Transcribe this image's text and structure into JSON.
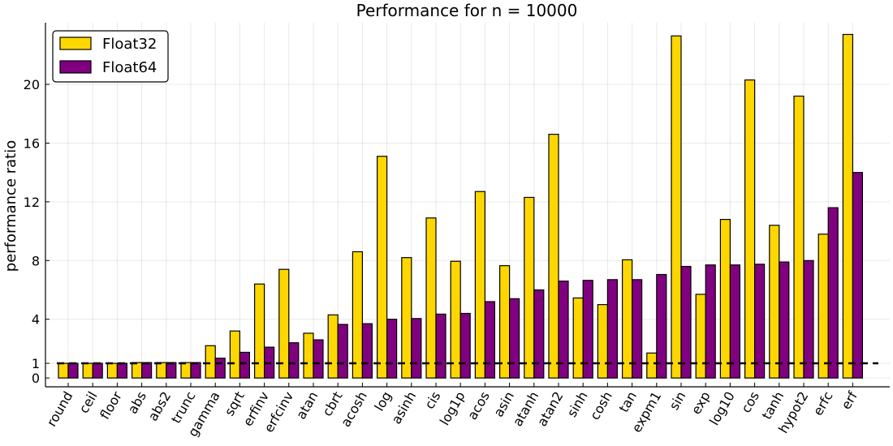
{
  "chart_data": {
    "type": "bar",
    "title": "Performance for n = 10000",
    "xlabel": "",
    "ylabel": "performance ratio",
    "ylim": [
      -0.6,
      24.2
    ],
    "yticks": [
      0,
      1,
      4,
      8,
      12,
      16,
      20
    ],
    "grid": true,
    "legend_position": "top-left",
    "reference_line": 1,
    "categories": [
      "round",
      "ceil",
      "floor",
      "abs",
      "abs2",
      "trunc",
      "gamma",
      "sqrt",
      "erfinv",
      "erfcinv",
      "atan",
      "cbrt",
      "acosh",
      "log",
      "asinh",
      "cis",
      "log1p",
      "acos",
      "asin",
      "atanh",
      "atan2",
      "sinh",
      "cosh",
      "tan",
      "expm1",
      "sin",
      "exp",
      "log10",
      "cos",
      "tanh",
      "hypot2",
      "erfc",
      "erf"
    ],
    "series": [
      {
        "name": "Float32",
        "color": "#FFD700",
        "values": [
          1.0,
          1.0,
          1.0,
          1.05,
          1.05,
          1.05,
          2.2,
          3.2,
          6.4,
          7.4,
          3.05,
          4.3,
          8.6,
          15.1,
          8.2,
          10.9,
          7.95,
          12.7,
          7.65,
          12.3,
          16.6,
          5.45,
          5.0,
          8.05,
          1.7,
          23.3,
          5.7,
          10.8,
          20.3,
          10.4,
          19.2,
          9.8,
          23.4
        ]
      },
      {
        "name": "Float64",
        "color": "#800080",
        "values": [
          1.0,
          1.0,
          1.0,
          1.05,
          1.05,
          1.05,
          1.35,
          1.75,
          2.1,
          2.4,
          2.6,
          3.65,
          3.7,
          4.0,
          4.05,
          4.35,
          4.4,
          5.2,
          5.4,
          6.0,
          6.6,
          6.65,
          6.7,
          6.7,
          7.05,
          7.6,
          7.7,
          7.7,
          7.75,
          7.9,
          8.0,
          11.6,
          14.0
        ]
      }
    ]
  }
}
